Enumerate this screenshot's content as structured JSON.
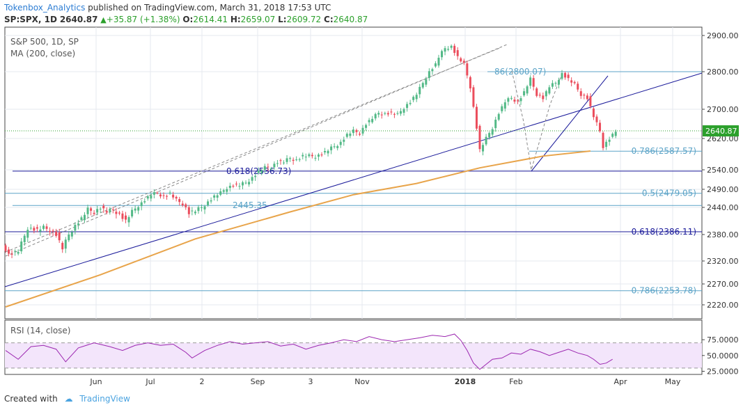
{
  "header": {
    "author": "Tokenbox_Analytics",
    "published": "published on TradingView.com, March 31, 2018 17:53 UTC",
    "symbol": "SP:SPX, 1D",
    "last": "2640.87",
    "change": "+35.87 (+1.38%)",
    "o_label": "O:",
    "o": "2614.41",
    "h_label": "H:",
    "h": "2659.07",
    "l_label": "L:",
    "l": "2609.72",
    "c_label": "C:",
    "c": "2640.87"
  },
  "legend": {
    "line1": "S&P 500, 1D, SP",
    "line2": "MA (200, close)",
    "rsi": "RSI (14, close)"
  },
  "footer": {
    "created_with": "Created with",
    "brand": "TradingView"
  },
  "colors": {
    "up": "#53b987",
    "down": "#eb4d5c",
    "ma": "#e8a44a",
    "navy": "#1a1a9a",
    "fib": "#5ba3c7",
    "rsi": "#9c27b0",
    "rsi_band": "#f3e5fb",
    "grid": "#e6e9ef",
    "price_tag": "#2ca02c"
  },
  "chart_data": {
    "type": "candlestick",
    "title": "S&P 500, 1D, SP",
    "price_ticks": [
      "2900.00",
      "2800.00",
      "2700.00",
      "2620.00",
      "2540.00",
      "2490.00",
      "2440.00",
      "2380.00",
      "2320.00",
      "2270.00",
      "2220.00"
    ],
    "last_price_label": "2640.87",
    "rsi_ticks": [
      "75.0000",
      "50.0000",
      "25.0000"
    ],
    "x_ticks": [
      "Jun",
      "Jul",
      "2",
      "Sep",
      "3",
      "Nov",
      "2018",
      "Feb",
      "Apr",
      "May"
    ],
    "ylim": [
      2200,
      2935
    ],
    "price_path": [
      [
        0,
        2360
      ],
      [
        2,
        2335
      ],
      [
        5,
        2342
      ],
      [
        8,
        2395
      ],
      [
        11,
        2390
      ],
      [
        13,
        2395
      ],
      [
        15,
        2390
      ],
      [
        17,
        2380
      ],
      [
        19,
        2348
      ],
      [
        21,
        2380
      ],
      [
        23,
        2400
      ],
      [
        25,
        2415
      ],
      [
        27,
        2435
      ],
      [
        29,
        2430
      ],
      [
        31,
        2440
      ],
      [
        33,
        2430
      ],
      [
        35,
        2435
      ],
      [
        37,
        2425
      ],
      [
        39,
        2410
      ],
      [
        41,
        2430
      ],
      [
        43,
        2445
      ],
      [
        45,
        2460
      ],
      [
        47,
        2475
      ],
      [
        49,
        2480
      ],
      [
        51,
        2470
      ],
      [
        53,
        2478
      ],
      [
        55,
        2460
      ],
      [
        57,
        2450
      ],
      [
        59,
        2428
      ],
      [
        61,
        2432
      ],
      [
        63,
        2440
      ],
      [
        65,
        2455
      ],
      [
        67,
        2470
      ],
      [
        69,
        2480
      ],
      [
        71,
        2495
      ],
      [
        73,
        2500
      ],
      [
        75,
        2500
      ],
      [
        77,
        2507
      ],
      [
        79,
        2520
      ],
      [
        81,
        2535
      ],
      [
        83,
        2545
      ],
      [
        85,
        2548
      ],
      [
        87,
        2560
      ],
      [
        89,
        2560
      ],
      [
        91,
        2570
      ],
      [
        93,
        2565
      ],
      [
        95,
        2575
      ],
      [
        97,
        2575
      ],
      [
        99,
        2575
      ],
      [
        101,
        2580
      ],
      [
        103,
        2590
      ],
      [
        105,
        2600
      ],
      [
        107,
        2610
      ],
      [
        109,
        2630
      ],
      [
        111,
        2640
      ],
      [
        113,
        2635
      ],
      [
        115,
        2660
      ],
      [
        117,
        2675
      ],
      [
        119,
        2690
      ],
      [
        121,
        2688
      ],
      [
        123,
        2690
      ],
      [
        125,
        2685
      ],
      [
        127,
        2705
      ],
      [
        129,
        2720
      ],
      [
        131,
        2740
      ],
      [
        133,
        2770
      ],
      [
        135,
        2800
      ],
      [
        137,
        2820
      ],
      [
        138,
        2840
      ],
      [
        140,
        2865
      ],
      [
        142,
        2870
      ],
      [
        144,
        2840
      ],
      [
        146,
        2820
      ],
      [
        148,
        2760
      ],
      [
        150,
        2650
      ],
      [
        151,
        2590
      ],
      [
        153,
        2620
      ],
      [
        155,
        2650
      ],
      [
        157,
        2690
      ],
      [
        159,
        2720
      ],
      [
        161,
        2730
      ],
      [
        163,
        2720
      ],
      [
        165,
        2745
      ],
      [
        167,
        2780
      ],
      [
        169,
        2740
      ],
      [
        171,
        2730
      ],
      [
        173,
        2760
      ],
      [
        175,
        2770
      ],
      [
        177,
        2795
      ],
      [
        179,
        2780
      ],
      [
        181,
        2765
      ],
      [
        183,
        2740
      ],
      [
        185,
        2730
      ],
      [
        187,
        2680
      ],
      [
        189,
        2640
      ],
      [
        190,
        2600
      ],
      [
        192,
        2620
      ],
      [
        194,
        2640
      ]
    ],
    "ma200": [
      [
        0,
        2215
      ],
      [
        30,
        2290
      ],
      [
        60,
        2370
      ],
      [
        90,
        2430
      ],
      [
        110,
        2475
      ],
      [
        130,
        2505
      ],
      [
        150,
        2545
      ],
      [
        170,
        2575
      ],
      [
        185,
        2588
      ]
    ],
    "fib_levels": [
      {
        "label": "0.786(2587.57)",
        "value": 2587.57,
        "color": "fib"
      },
      {
        "label": "0.618(2536.73)",
        "value": 2536.73,
        "color": "navy"
      },
      {
        "label": "0.5(2479.05)",
        "value": 2479.05,
        "color": "fib"
      },
      {
        "label": "0.618(2386.11)",
        "value": 2386.11,
        "color": "navy"
      },
      {
        "label": "0.786(2253.78)",
        "value": 2253.78,
        "color": "fib"
      },
      {
        "label": "86(2800.07)",
        "value": 2800.07,
        "color": "fib"
      },
      {
        "label": "2445.35",
        "value": 2445.35,
        "color": "fib"
      }
    ],
    "rsi_path": [
      [
        0,
        58
      ],
      [
        4,
        44
      ],
      [
        8,
        64
      ],
      [
        12,
        66
      ],
      [
        16,
        60
      ],
      [
        19,
        40
      ],
      [
        23,
        62
      ],
      [
        28,
        70
      ],
      [
        33,
        64
      ],
      [
        37,
        58
      ],
      [
        41,
        66
      ],
      [
        45,
        70
      ],
      [
        49,
        66
      ],
      [
        53,
        68
      ],
      [
        57,
        55
      ],
      [
        59,
        46
      ],
      [
        63,
        58
      ],
      [
        67,
        66
      ],
      [
        71,
        72
      ],
      [
        75,
        68
      ],
      [
        79,
        70
      ],
      [
        83,
        72
      ],
      [
        87,
        65
      ],
      [
        91,
        68
      ],
      [
        95,
        60
      ],
      [
        99,
        66
      ],
      [
        103,
        70
      ],
      [
        107,
        75
      ],
      [
        111,
        72
      ],
      [
        115,
        80
      ],
      [
        119,
        75
      ],
      [
        123,
        72
      ],
      [
        127,
        75
      ],
      [
        131,
        78
      ],
      [
        135,
        82
      ],
      [
        139,
        80
      ],
      [
        142,
        84
      ],
      [
        144,
        74
      ],
      [
        146,
        58
      ],
      [
        148,
        38
      ],
      [
        150,
        28
      ],
      [
        152,
        36
      ],
      [
        154,
        44
      ],
      [
        157,
        46
      ],
      [
        160,
        54
      ],
      [
        163,
        52
      ],
      [
        166,
        60
      ],
      [
        169,
        56
      ],
      [
        172,
        50
      ],
      [
        175,
        55
      ],
      [
        178,
        60
      ],
      [
        181,
        54
      ],
      [
        184,
        50
      ],
      [
        186,
        44
      ],
      [
        188,
        36
      ],
      [
        190,
        38
      ],
      [
        192,
        44
      ]
    ]
  }
}
